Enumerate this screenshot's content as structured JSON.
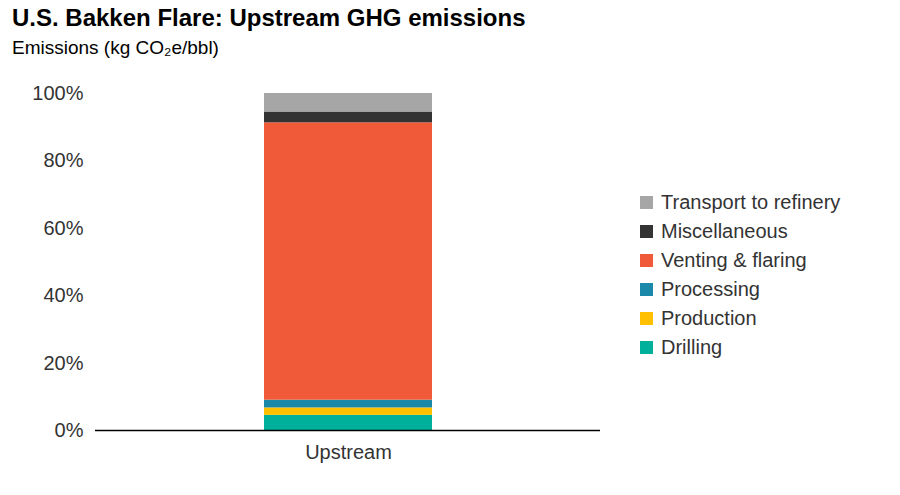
{
  "chart_data": {
    "type": "bar",
    "title": "U.S. Bakken Flare: Upstream GHG emissions",
    "subtitle": "Emissions (kg CO₂e/bbl)",
    "categories": [
      "Upstream"
    ],
    "stacked": true,
    "legend": "right",
    "grid": false,
    "ylim": [
      0,
      100
    ],
    "yticks": [
      {
        "value": 0,
        "label": "0%"
      },
      {
        "value": 20,
        "label": "20%"
      },
      {
        "value": 40,
        "label": "40%"
      },
      {
        "value": 60,
        "label": "60%"
      },
      {
        "value": 80,
        "label": "80%"
      },
      {
        "value": 100,
        "label": "100%"
      }
    ],
    "series": [
      {
        "name": "Drilling",
        "color": "#00b09a",
        "values": [
          4.5
        ]
      },
      {
        "name": "Production",
        "color": "#ffc000",
        "values": [
          2.2
        ]
      },
      {
        "name": "Processing",
        "color": "#1a88a8",
        "values": [
          2.3
        ]
      },
      {
        "name": "Venting & flaring",
        "color": "#f05a38",
        "values": [
          82.3
        ]
      },
      {
        "name": "Miscellaneous",
        "color": "#333333",
        "values": [
          3.2
        ]
      },
      {
        "name": "Transport to refinery",
        "color": "#a6a6a6",
        "values": [
          5.5
        ]
      }
    ]
  }
}
